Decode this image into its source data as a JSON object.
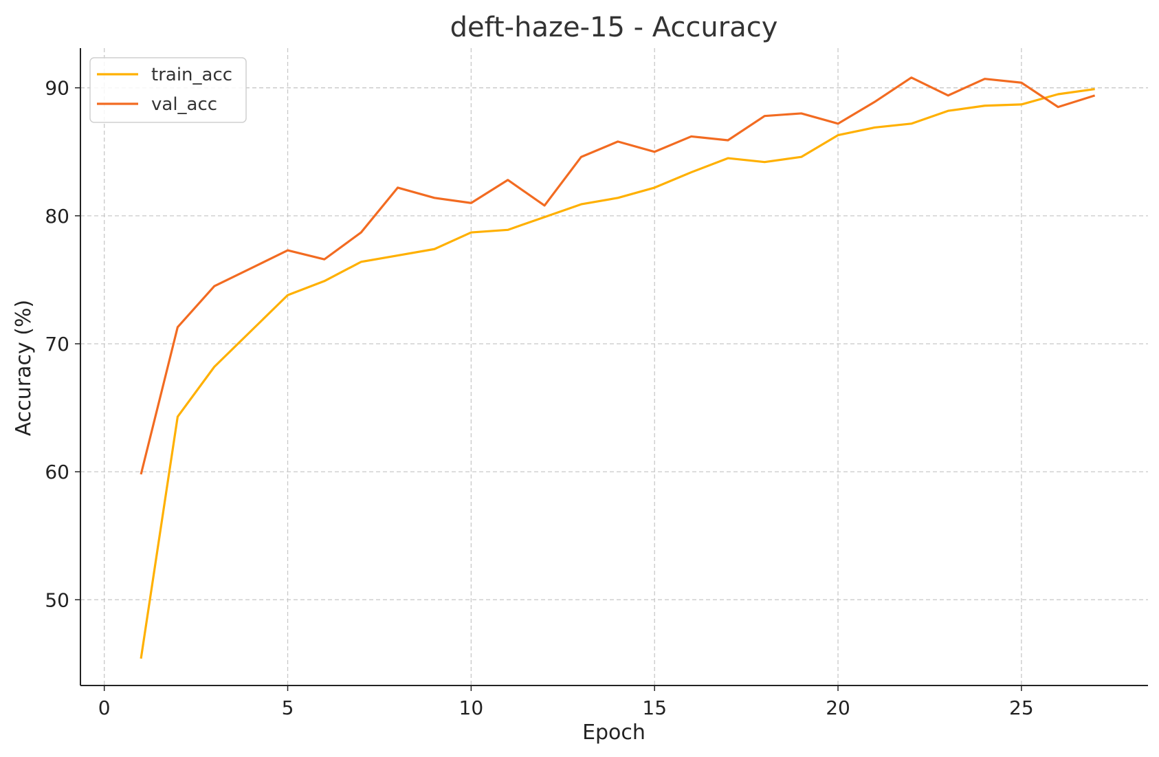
{
  "chart_data": {
    "type": "line",
    "title": "deft-haze-15 - Accuracy",
    "xlabel": "Epoch",
    "ylabel": "Accuracy (%)",
    "xlim": [
      -0.65,
      28.45
    ],
    "ylim": [
      43.3,
      93.1
    ],
    "xticks": [
      0,
      5,
      10,
      15,
      20,
      25
    ],
    "yticks": [
      50,
      60,
      70,
      80,
      90
    ],
    "grid": true,
    "legend_position": "top-left",
    "x": [
      1,
      2,
      3,
      4,
      5,
      6,
      7,
      8,
      9,
      10,
      11,
      12,
      13,
      14,
      15,
      16,
      17,
      18,
      19,
      20,
      21,
      22,
      23,
      24,
      25,
      26,
      27
    ],
    "series": [
      {
        "name": "train_acc",
        "color": "#FFB000",
        "values": [
          45.4,
          64.3,
          68.2,
          71.0,
          73.8,
          74.9,
          76.4,
          76.9,
          77.4,
          78.7,
          78.9,
          79.9,
          80.9,
          81.4,
          82.2,
          83.4,
          84.5,
          84.2,
          84.6,
          86.3,
          86.9,
          87.2,
          88.2,
          88.6,
          88.7,
          89.5,
          89.9
        ]
      },
      {
        "name": "val_acc",
        "color": "#F26B21",
        "values": [
          59.8,
          71.3,
          74.5,
          75.9,
          77.3,
          76.6,
          78.7,
          82.2,
          81.4,
          81.0,
          82.8,
          80.8,
          84.6,
          85.8,
          85.0,
          86.2,
          85.9,
          87.8,
          88.0,
          87.2,
          88.9,
          90.8,
          89.4,
          90.7,
          90.4,
          88.5,
          89.4
        ]
      }
    ]
  }
}
